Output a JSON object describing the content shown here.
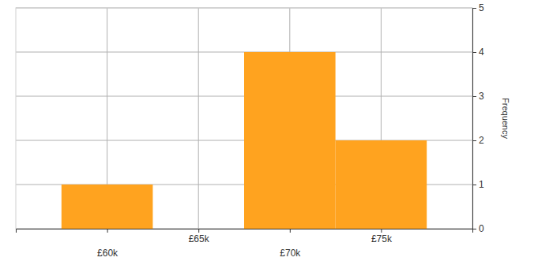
{
  "chart_data": {
    "type": "histogram",
    "bins": [
      57500,
      62500,
      67500,
      72500,
      77500
    ],
    "values": [
      1,
      0,
      4,
      2
    ],
    "color": "#ffa31f",
    "xlim": [
      55000,
      80000
    ],
    "xticks": [
      {
        "value": 60000,
        "label": "£60k"
      },
      {
        "value": 65000,
        "label": "£65k"
      },
      {
        "value": 70000,
        "label": "£70k"
      },
      {
        "value": 75000,
        "label": "£75k"
      }
    ],
    "ylim": [
      0,
      5
    ],
    "yticks": [
      0,
      1,
      2,
      3,
      4,
      5
    ],
    "y_label": "Frequency",
    "grid": true
  }
}
